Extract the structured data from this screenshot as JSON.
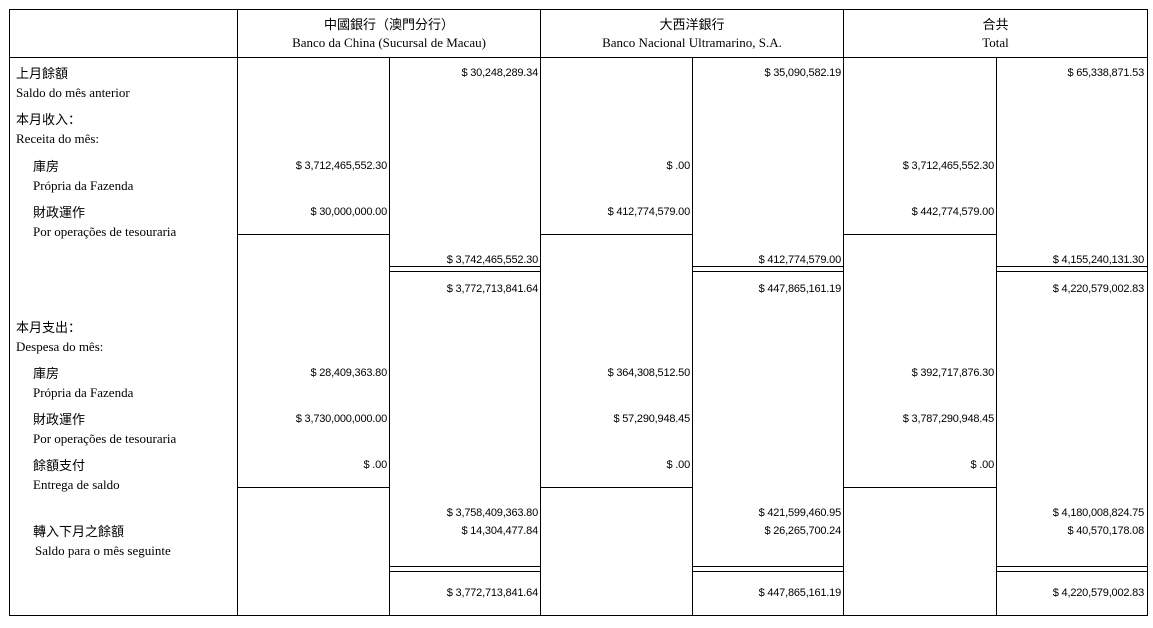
{
  "header": {
    "columns": [
      {
        "zh": "中國銀行（澳門分行）",
        "pt": "Banco da China (Sucursal de Macau)"
      },
      {
        "zh": "大西洋銀行",
        "pt": "Banco Nacional Ultramarino, S.A."
      },
      {
        "zh": "合共",
        "pt": "Total"
      }
    ]
  },
  "rows": [
    {
      "zh": "上月餘額",
      "pt": "Saldo do mês anterior",
      "indent": false,
      "values": [
        "",
        "$ 30,248,289.34",
        "",
        "$ 35,090,582.19",
        "",
        "$ 65,338,871.53"
      ]
    },
    {
      "zh": "本月收入：",
      "pt": "Receita do mês:",
      "indent": false,
      "values": [
        "",
        "",
        "",
        "",
        "",
        ""
      ]
    },
    {
      "zh": "庫房",
      "pt": "Própria da Fazenda",
      "indent": true,
      "values": [
        "$ 3,712,465,552.30",
        "",
        "$ .00",
        "",
        "$ 3,712,465,552.30",
        ""
      ]
    },
    {
      "zh": "財政運作",
      "pt": "Por operações de tesouraria",
      "indent": true,
      "values": [
        "$ 30,000,000.00",
        "",
        "$ 412,774,579.00",
        "",
        "$ 442,774,579.00",
        ""
      ]
    },
    {
      "zh": "",
      "pt": "",
      "indent": false,
      "values": [
        "",
        "$ 3,742,465,552.30",
        "",
        "$ 412,774,579.00",
        "",
        "$ 4,155,240,131.30"
      ]
    },
    {
      "zh": "",
      "pt": "",
      "indent": false,
      "values": [
        "",
        "$ 3,772,713,841.64",
        "",
        "$ 447,865,161.19",
        "",
        "$ 4,220,579,002.83"
      ]
    },
    {
      "zh": "本月支出：",
      "pt": "Despesa do mês:",
      "indent": false,
      "values": [
        "",
        "",
        "",
        "",
        "",
        ""
      ]
    },
    {
      "zh": "庫房",
      "pt": "Própria da Fazenda",
      "indent": true,
      "values": [
        "$ 28,409,363.80",
        "",
        "$ 364,308,512.50",
        "",
        "$ 392,717,876.30",
        ""
      ]
    },
    {
      "zh": "財政運作",
      "pt": "Por operações de tesouraria",
      "indent": true,
      "values": [
        "$ 3,730,000,000.00",
        "",
        "$ 57,290,948.45",
        "",
        "$ 3,787,290,948.45",
        ""
      ]
    },
    {
      "zh": "餘額支付",
      "pt": "Entrega de saldo",
      "indent": true,
      "values": [
        "$ .00",
        "",
        "$ .00",
        "",
        "$ .00",
        ""
      ]
    },
    {
      "zh": "",
      "pt": "",
      "indent": false,
      "values": [
        "",
        "$ 3,758,409,363.80",
        "",
        "$ 421,599,460.95",
        "",
        "$ 4,180,008,824.75"
      ]
    },
    {
      "zh": "轉入下月之餘額",
      "pt": "Saldo para o mês seguinte",
      "indent": true,
      "values": [
        "",
        "$ 14,304,477.84",
        "",
        "$ 26,265,700.24",
        "",
        "$ 40,570,178.08"
      ]
    },
    {
      "zh": "",
      "pt": "",
      "indent": false,
      "values": [
        "",
        "$ 3,772,713,841.64",
        "",
        "$ 447,865,161.19",
        "",
        "$ 4,220,579,002.83"
      ]
    }
  ]
}
